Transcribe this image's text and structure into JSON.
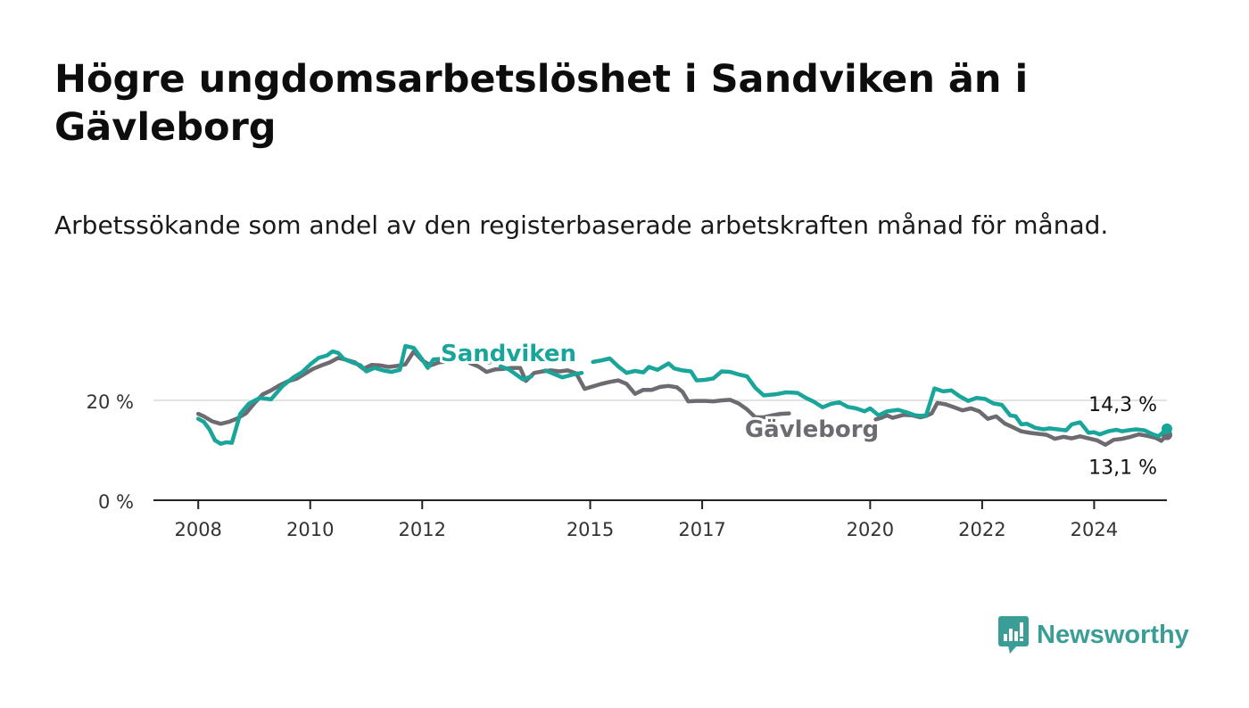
{
  "title": "Högre ungdomsarbetslöshet i Sandviken än i Gävleborg",
  "subtitle": "Arbetssökande som andel av den registerbaserade arbetskraften månad för månad.",
  "brand": {
    "name": "Newsworthy",
    "icon": "bar-chart-speech-bubble-icon",
    "color": "#3a9e96"
  },
  "colors": {
    "sandviken": "#1aa59a",
    "gavleborg": "#6d6a71",
    "grid": "#d9d9d9",
    "axis": "#222222"
  },
  "chart_data": {
    "type": "line",
    "ylim": [
      0,
      30
    ],
    "xlim": [
      2007.2,
      2025.3
    ],
    "y_ticks": [
      {
        "value": 0,
        "label": "0 %"
      },
      {
        "value": 20,
        "label": "20 %"
      }
    ],
    "x_ticks": [
      {
        "value": 2008,
        "label": "2008"
      },
      {
        "value": 2010,
        "label": "2010"
      },
      {
        "value": 2012,
        "label": "2012"
      },
      {
        "value": 2015,
        "label": "2015"
      },
      {
        "value": 2017,
        "label": "2017"
      },
      {
        "value": 2020,
        "label": "2020"
      },
      {
        "value": 2022,
        "label": "2022"
      },
      {
        "value": 2024,
        "label": "2024"
      }
    ],
    "grid": true,
    "series": [
      {
        "name": "Sandviken",
        "key": "sandviken",
        "end_label": "14,3 %",
        "points": [
          [
            2008.0,
            16.3
          ],
          [
            2008.1,
            15.7
          ],
          [
            2008.2,
            14.2
          ],
          [
            2008.3,
            12.0
          ],
          [
            2008.4,
            11.3
          ],
          [
            2008.5,
            11.6
          ],
          [
            2008.6,
            11.5
          ],
          [
            2008.75,
            17.3
          ],
          [
            2008.9,
            19.3
          ],
          [
            2009.1,
            20.5
          ],
          [
            2009.3,
            20.2
          ],
          [
            2009.5,
            22.8
          ],
          [
            2009.7,
            24.6
          ],
          [
            2009.85,
            25.6
          ],
          [
            2010.0,
            27.2
          ],
          [
            2010.15,
            28.5
          ],
          [
            2010.3,
            29.0
          ],
          [
            2010.4,
            29.8
          ],
          [
            2010.5,
            29.5
          ],
          [
            2010.6,
            28.3
          ],
          [
            2010.75,
            27.6
          ],
          [
            2010.9,
            27.0
          ],
          [
            2011.0,
            25.8
          ],
          [
            2011.15,
            26.5
          ],
          [
            2011.3,
            26.0
          ],
          [
            2011.45,
            25.7
          ],
          [
            2011.6,
            26.1
          ],
          [
            2011.7,
            30.9
          ],
          [
            2011.85,
            30.5
          ],
          [
            2012.0,
            28.2
          ],
          [
            2012.1,
            26.5
          ],
          [
            2012.2,
            28.2
          ],
          [
            2012.35,
            28.3
          ],
          [
            2012.5,
            29.0
          ],
          [
            2012.65,
            29.6
          ],
          [
            2012.8,
            29.6
          ],
          [
            2012.9,
            28.5
          ],
          [
            2013.0,
            28.0
          ],
          [
            2013.1,
            27.9
          ],
          [
            2013.2,
            27.6
          ],
          null,
          [
            2013.4,
            26.8
          ],
          [
            2013.55,
            26.2
          ],
          [
            2013.8,
            24.2
          ],
          [
            2013.95,
            24.8
          ],
          null,
          [
            2014.2,
            26.0
          ],
          [
            2014.5,
            24.6
          ],
          [
            2014.7,
            25.2
          ],
          [
            2014.85,
            25.5
          ],
          null,
          [
            2015.05,
            27.7
          ],
          [
            2015.2,
            28.0
          ],
          [
            2015.35,
            28.4
          ],
          [
            2015.5,
            26.8
          ],
          [
            2015.65,
            25.5
          ],
          [
            2015.8,
            25.9
          ],
          [
            2015.95,
            25.6
          ],
          [
            2016.05,
            26.7
          ],
          [
            2016.2,
            26.1
          ],
          [
            2016.4,
            27.4
          ],
          [
            2016.5,
            26.4
          ],
          [
            2016.65,
            26.0
          ],
          [
            2016.8,
            25.8
          ],
          [
            2016.9,
            24.0
          ],
          [
            2017.05,
            24.1
          ],
          [
            2017.2,
            24.4
          ],
          [
            2017.35,
            25.8
          ],
          [
            2017.5,
            25.7
          ],
          [
            2017.65,
            25.2
          ],
          [
            2017.8,
            24.8
          ],
          [
            2017.95,
            22.5
          ],
          [
            2018.1,
            21.0
          ],
          [
            2018.3,
            21.2
          ],
          [
            2018.5,
            21.6
          ],
          [
            2018.7,
            21.5
          ],
          [
            2018.85,
            20.5
          ],
          [
            2019.0,
            19.7
          ],
          [
            2019.15,
            18.6
          ],
          [
            2019.3,
            19.3
          ],
          [
            2019.45,
            19.6
          ],
          [
            2019.6,
            18.7
          ],
          [
            2019.75,
            18.4
          ],
          [
            2019.9,
            17.8
          ],
          [
            2020.0,
            18.4
          ],
          [
            2020.15,
            17.0
          ],
          [
            2020.3,
            17.8
          ],
          [
            2020.5,
            18.1
          ],
          [
            2020.65,
            17.6
          ],
          [
            2020.8,
            17.0
          ],
          [
            2020.9,
            16.9
          ],
          [
            2021.0,
            17.0
          ],
          [
            2021.15,
            22.4
          ],
          [
            2021.3,
            21.8
          ],
          [
            2021.45,
            22.0
          ],
          [
            2021.6,
            20.8
          ],
          [
            2021.75,
            19.9
          ],
          [
            2021.9,
            20.5
          ],
          [
            2022.05,
            20.3
          ],
          [
            2022.2,
            19.4
          ],
          [
            2022.35,
            19.1
          ],
          [
            2022.5,
            17.0
          ],
          [
            2022.6,
            16.8
          ],
          [
            2022.7,
            15.2
          ],
          [
            2022.8,
            15.3
          ],
          [
            2022.95,
            14.5
          ],
          [
            2023.1,
            14.2
          ],
          [
            2023.2,
            14.4
          ],
          [
            2023.35,
            14.2
          ],
          [
            2023.5,
            14.0
          ],
          [
            2023.6,
            15.2
          ],
          [
            2023.75,
            15.6
          ],
          [
            2023.9,
            13.5
          ],
          [
            2024.0,
            13.6
          ],
          [
            2024.1,
            13.2
          ],
          [
            2024.25,
            13.8
          ],
          [
            2024.4,
            14.1
          ],
          [
            2024.5,
            13.8
          ],
          [
            2024.6,
            14.0
          ],
          [
            2024.75,
            14.2
          ],
          [
            2024.9,
            14.0
          ],
          [
            2025.05,
            13.2
          ],
          [
            2025.15,
            12.8
          ],
          [
            2025.3,
            14.3
          ]
        ]
      },
      {
        "name": "Gävleborg",
        "key": "gavleborg",
        "end_label": "13,1 %",
        "points": [
          [
            2008.0,
            17.3
          ],
          [
            2008.1,
            16.8
          ],
          [
            2008.25,
            15.8
          ],
          [
            2008.4,
            15.3
          ],
          [
            2008.55,
            15.7
          ],
          [
            2008.7,
            16.4
          ],
          [
            2008.85,
            17.4
          ],
          [
            2009.0,
            19.4
          ],
          [
            2009.15,
            21.2
          ],
          [
            2009.3,
            22.0
          ],
          [
            2009.45,
            23.0
          ],
          [
            2009.6,
            23.8
          ],
          [
            2009.75,
            24.3
          ],
          [
            2009.9,
            25.3
          ],
          [
            2010.05,
            26.3
          ],
          [
            2010.2,
            27.0
          ],
          [
            2010.35,
            27.6
          ],
          [
            2010.5,
            28.5
          ],
          [
            2010.65,
            28.1
          ],
          [
            2010.8,
            27.6
          ],
          [
            2010.95,
            26.3
          ],
          [
            2011.1,
            27.1
          ],
          [
            2011.25,
            27.0
          ],
          [
            2011.4,
            26.7
          ],
          [
            2011.55,
            26.9
          ],
          [
            2011.7,
            27.2
          ],
          [
            2011.85,
            29.8
          ],
          [
            2012.0,
            28.0
          ],
          [
            2012.15,
            27.0
          ],
          [
            2012.3,
            27.6
          ],
          [
            2012.45,
            27.8
          ],
          [
            2012.6,
            28.3
          ],
          [
            2012.75,
            28.5
          ],
          [
            2012.85,
            27.5
          ],
          [
            2013.0,
            26.8
          ],
          [
            2013.15,
            25.7
          ],
          [
            2013.3,
            26.2
          ],
          [
            2013.45,
            26.3
          ],
          [
            2013.6,
            26.5
          ],
          [
            2013.75,
            26.5
          ],
          [
            2013.85,
            23.9
          ],
          [
            2014.0,
            25.5
          ],
          [
            2014.15,
            25.8
          ],
          [
            2014.3,
            26.0
          ],
          [
            2014.45,
            25.8
          ],
          [
            2014.6,
            26.0
          ],
          [
            2014.75,
            25.4
          ],
          [
            2014.9,
            22.3
          ],
          [
            2015.05,
            22.8
          ],
          [
            2015.2,
            23.3
          ],
          [
            2015.35,
            23.7
          ],
          [
            2015.5,
            24.0
          ],
          [
            2015.65,
            23.3
          ],
          [
            2015.8,
            21.3
          ],
          [
            2015.95,
            22.1
          ],
          [
            2016.1,
            22.1
          ],
          [
            2016.25,
            22.7
          ],
          [
            2016.4,
            22.9
          ],
          [
            2016.55,
            22.6
          ],
          [
            2016.65,
            21.7
          ],
          [
            2016.75,
            19.8
          ],
          [
            2016.9,
            19.9
          ],
          [
            2017.05,
            19.9
          ],
          [
            2017.2,
            19.8
          ],
          [
            2017.35,
            20.0
          ],
          [
            2017.5,
            20.1
          ],
          [
            2017.65,
            19.4
          ],
          [
            2017.8,
            18.2
          ],
          [
            2017.95,
            16.6
          ],
          [
            2018.1,
            16.6
          ],
          [
            2018.25,
            17.0
          ],
          [
            2018.4,
            17.3
          ],
          [
            2018.55,
            17.4
          ],
          null,
          [
            2020.1,
            16.2
          ],
          [
            2020.2,
            16.5
          ],
          [
            2020.3,
            17.0
          ],
          [
            2020.4,
            16.5
          ],
          [
            2020.5,
            16.8
          ],
          [
            2020.6,
            17.1
          ],
          [
            2020.75,
            17.0
          ],
          [
            2020.9,
            16.6
          ],
          [
            2021.0,
            16.9
          ],
          [
            2021.1,
            17.4
          ],
          [
            2021.2,
            19.5
          ],
          [
            2021.35,
            19.2
          ],
          [
            2021.5,
            18.6
          ],
          [
            2021.65,
            18.0
          ],
          [
            2021.8,
            18.4
          ],
          [
            2021.95,
            17.8
          ],
          [
            2022.1,
            16.3
          ],
          [
            2022.25,
            16.8
          ],
          [
            2022.4,
            15.4
          ],
          [
            2022.55,
            14.6
          ],
          [
            2022.7,
            13.8
          ],
          [
            2022.85,
            13.5
          ],
          [
            2023.0,
            13.3
          ],
          [
            2023.15,
            13.1
          ],
          [
            2023.3,
            12.3
          ],
          [
            2023.45,
            12.7
          ],
          [
            2023.6,
            12.4
          ],
          [
            2023.75,
            12.8
          ],
          [
            2023.9,
            12.4
          ],
          [
            2024.05,
            12.0
          ],
          [
            2024.2,
            11.1
          ],
          [
            2024.35,
            12.1
          ],
          [
            2024.5,
            12.3
          ],
          [
            2024.65,
            12.7
          ],
          [
            2024.8,
            13.2
          ],
          [
            2024.95,
            12.9
          ],
          [
            2025.1,
            12.5
          ],
          [
            2025.2,
            11.9
          ],
          [
            2025.3,
            13.1
          ]
        ]
      }
    ]
  }
}
